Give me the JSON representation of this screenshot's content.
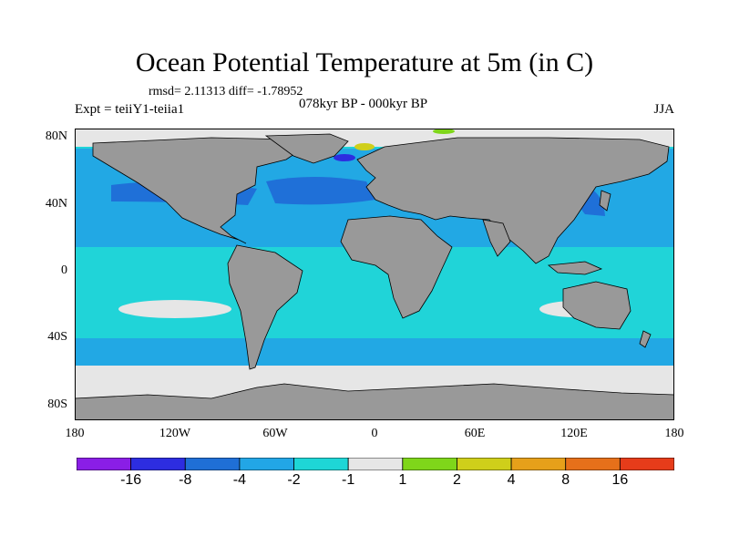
{
  "title": "Ocean Potential Temperature at 5m (in C)",
  "stats": "rmsd= 2.11313 diff= -1.78952",
  "experiment": "Expt = teiiY1-teiia1",
  "period": "078kyr BP - 000kyr BP",
  "season": "JJA",
  "lat_labels": [
    "80N",
    "40N",
    "0",
    "40S",
    "80S"
  ],
  "lon_labels": [
    "180",
    "120W",
    "60W",
    "0",
    "60E",
    "120E",
    "180"
  ],
  "colorbar": {
    "colors": [
      "#8a1ee6",
      "#2d2de0",
      "#1f6fd6",
      "#22a6e6",
      "#1ed6d6",
      "#e6e6e6",
      "#7fd61a",
      "#cfcf1a",
      "#e6a01a",
      "#e6701a",
      "#e63c1a"
    ],
    "labels": [
      "-16",
      "-8",
      "-4",
      "-2",
      "-1",
      "1",
      "2",
      "4",
      "8",
      "16"
    ]
  },
  "palette": {
    "land": "#999999",
    "ocean_main": "#20d4d8",
    "ocean_mid": "#22a8e4",
    "ocean_cool": "#1f70d8",
    "near_zero": "#e6e6e6"
  }
}
